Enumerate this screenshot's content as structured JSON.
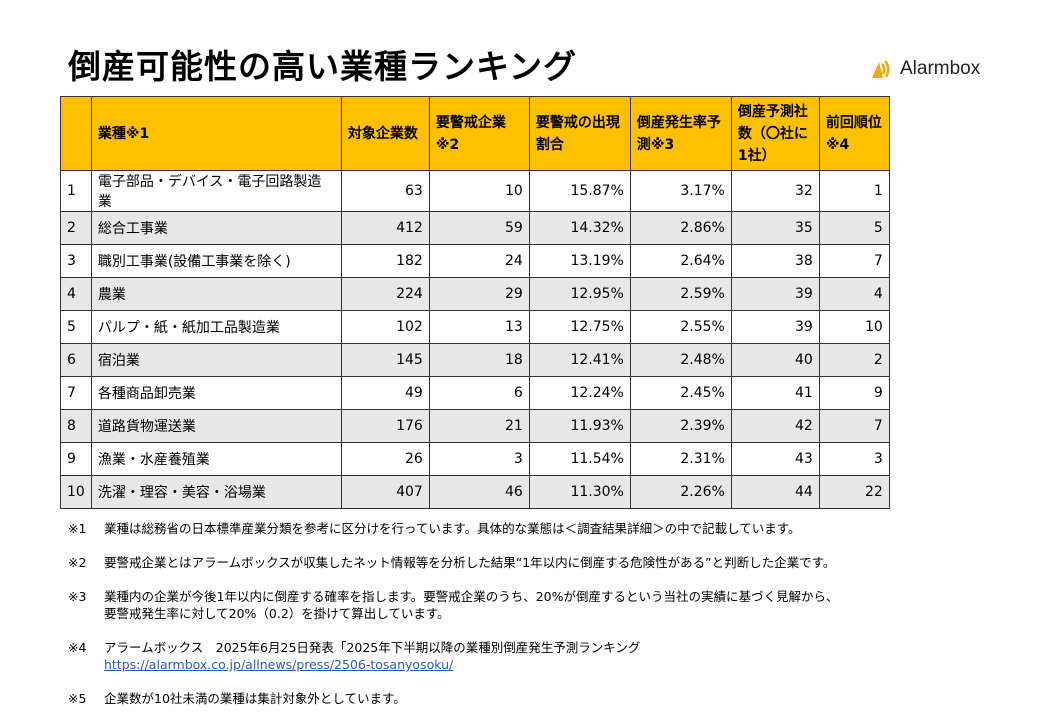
{
  "title": "倒産可能性の高い業種ランキング",
  "logo": {
    "text": "Alarmbox",
    "accent": "#F5A800"
  },
  "colors": {
    "header": "#FFC000",
    "alt_row": "#E7E7E7"
  },
  "headers": [
    "",
    "業種※1",
    "対象企業数",
    "要警戒企業※2",
    "要警戒の出現割合",
    "倒産発生率予測※3",
    "倒産予測社数（〇社に1社）",
    "前回順位※4"
  ],
  "rows": [
    [
      "1",
      "電子部品・デバイス・電子回路製造業",
      "63",
      "10",
      "15.87%",
      "3.17%",
      "32",
      "1"
    ],
    [
      "2",
      "総合工事業",
      "412",
      "59",
      "14.32%",
      "2.86%",
      "35",
      "5"
    ],
    [
      "3",
      "職別工事業(設備工事業を除く)",
      "182",
      "24",
      "13.19%",
      "2.64%",
      "38",
      "7"
    ],
    [
      "4",
      "農業",
      "224",
      "29",
      "12.95%",
      "2.59%",
      "39",
      "4"
    ],
    [
      "5",
      "パルプ・紙・紙加工品製造業",
      "102",
      "13",
      "12.75%",
      "2.55%",
      "39",
      "10"
    ],
    [
      "6",
      "宿泊業",
      "145",
      "18",
      "12.41%",
      "2.48%",
      "40",
      "2"
    ],
    [
      "7",
      "各種商品卸売業",
      "49",
      "6",
      "12.24%",
      "2.45%",
      "41",
      "9"
    ],
    [
      "8",
      "道路貨物運送業",
      "176",
      "21",
      "11.93%",
      "2.39%",
      "42",
      "7"
    ],
    [
      "9",
      "漁業・水産養殖業",
      "26",
      "3",
      "11.54%",
      "2.31%",
      "43",
      "3"
    ],
    [
      "10",
      "洗濯・理容・美容・浴場業",
      "407",
      "46",
      "11.30%",
      "2.26%",
      "44",
      "22"
    ]
  ],
  "notes": [
    {
      "mark": "※1",
      "lines": [
        "業種は総務省の日本標準産業分類を参考に区分けを行っています。具体的な業態は＜調査結果詳細＞の中で記載しています。"
      ]
    },
    {
      "mark": "※2",
      "lines": [
        "要警戒企業とはアラームボックスが収集したネット情報等を分析した結果“1年以内に倒産する危険性がある”と判断した企業です。"
      ]
    },
    {
      "mark": "※3",
      "lines": [
        "業種内の企業が今後1年以内に倒産する確率を指します。要警戒企業のうち、20%が倒産するという当社の実績に基づく見解から、",
        "要警戒発生率に対して20%（0.2）を掛けて算出しています。"
      ]
    },
    {
      "mark": "※4",
      "lines": [
        "アラームボックス　2025年6月25日発表「2025年下半期以降の業種別倒産発生予測ランキング"
      ],
      "link": "https://alarmbox.co.jp/allnews/press/2506-tosanyosoku/"
    },
    {
      "mark": "※5",
      "lines": [
        "企業数が10社未満の業種は集計対象外としています。"
      ]
    }
  ]
}
